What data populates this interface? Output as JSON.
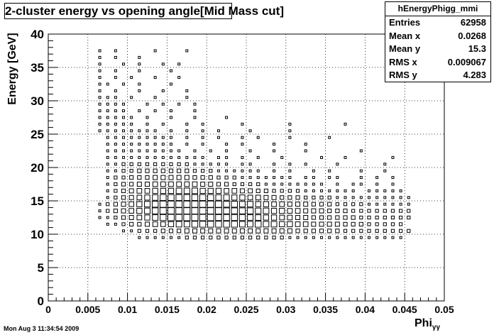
{
  "chart_data": {
    "type": "heatmap",
    "title": "2-cluster energy vs opening angle[Mid Mass cut]",
    "xlabel": "Phi",
    "xlabel_subscript": "γγ",
    "ylabel": "Energy [GeV]",
    "xlim": [
      0,
      0.05
    ],
    "ylim": [
      0,
      40
    ],
    "x_ticks": [
      "0",
      "0.005",
      "0.01",
      "0.015",
      "0.02",
      "0.025",
      "0.03",
      "0.035",
      "0.04",
      "0.045",
      "0.05"
    ],
    "y_ticks": [
      "0",
      "5",
      "10",
      "15",
      "20",
      "25",
      "30",
      "35",
      "40"
    ],
    "grid": true,
    "draw_option": "box",
    "bin_width_x": 0.001,
    "bin_width_y": 1,
    "x_start": 0.005,
    "y_start": 8,
    "rows_y_bins": [
      "........................................",
      "......1111112222222222222111111111111111",
      "....1122233344444444444444333333222222222",
      "..11233455677888888778776655444433322222",
      ".1123456789999998888776655443333332222222",
      ".1234567899999999888877665544433322222222",
      ".1234567899999999887766554443332222111111",
      "..123456788888887766554433322221111111111",
      "..12345566677766655443322221111111.11111.",
      "..1233445555554433222211111111.1.11.1.1..",
      "..122333444443332221111111.11.11..1.1.1..",
      "..11223333333222111111.1.1..1.1...1..1...",
      "..1122222222211111.11..1.1.1...1.....1...",
      "..1111111111111.11.1.1..1....1..1.....1..",
      "..1111111111.1.1.1..1..1...1......1......",
      "..111111111.1.1..1.1...1...1.............",
      "..111111111.1.1.1..1.1...1....1..........",
      ".11111111.1.1.1.1...1....1...............",
      ".11111.1.1..1.1....1.....1......1........",
      ".11111.1..1..1...1.......................",
      ".1111.1.1.1..1...........................",
      ".1111..1.1.1.1...........................",
      ".111.1..1...1.............................",
      ".1.1..1..1..1.............................",
      ".11.1.1...1...............................",
      ".1.1.1..1..1..............................",
      ".1.1..1...1...............................",
      ".1..1.1..1.1.............................",
      ".1.1..1...................................",
      ".1.1....1...1............................."
    ],
    "max_level": 9
  },
  "stats": {
    "name": "hEnergyPhigg_mmi",
    "entries_label": "Entries",
    "entries": "62958",
    "meanx_label": "Mean x",
    "meanx": "0.0268",
    "meany_label": "Mean y",
    "meany": "15.3",
    "rmsx_label": "RMS x",
    "rmsx": "0.009067",
    "rmsy_label": "RMS y",
    "rmsy": "4.283"
  },
  "timestamp": "Mon Aug  3 11:34:54 2009"
}
